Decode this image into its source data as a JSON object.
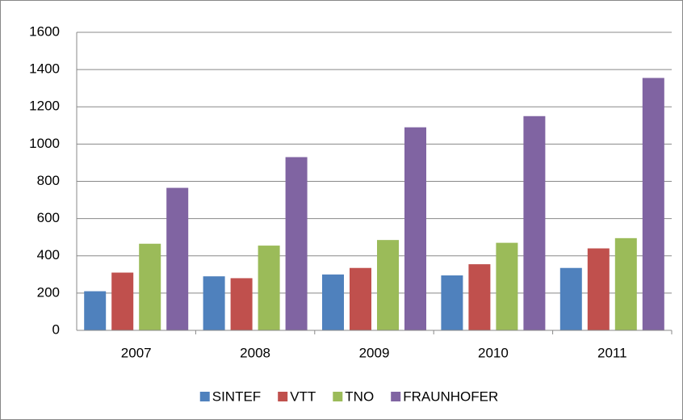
{
  "chart_data": {
    "type": "bar",
    "categories": [
      "2007",
      "2008",
      "2009",
      "2010",
      "2011"
    ],
    "series": [
      {
        "name": "SINTEF",
        "color": "#4f81bd",
        "values": [
          210,
          290,
          300,
          295,
          335
        ]
      },
      {
        "name": "VTT",
        "color": "#c0504d",
        "values": [
          310,
          280,
          335,
          355,
          440
        ]
      },
      {
        "name": "TNO",
        "color": "#9bbb59",
        "values": [
          465,
          455,
          485,
          470,
          495
        ]
      },
      {
        "name": "FRAUNHOFER",
        "color": "#8064a2",
        "values": [
          765,
          930,
          1090,
          1150,
          1355
        ]
      }
    ],
    "ylim": [
      0,
      1600
    ],
    "yticks": [
      0,
      200,
      400,
      600,
      800,
      1000,
      1200,
      1400,
      1600
    ],
    "grid": true,
    "legend": "bottom"
  }
}
